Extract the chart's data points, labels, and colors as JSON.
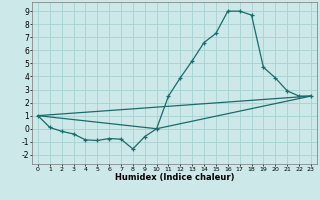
{
  "xlabel": "Humidex (Indice chaleur)",
  "bg_color": "#cce8e8",
  "grid_color": "#aad4d4",
  "line_color": "#1a6b6b",
  "xlim": [
    -0.5,
    23.5
  ],
  "ylim": [
    -2.7,
    9.7
  ],
  "xticks": [
    0,
    1,
    2,
    3,
    4,
    5,
    6,
    7,
    8,
    9,
    10,
    11,
    12,
    13,
    14,
    15,
    16,
    17,
    18,
    19,
    20,
    21,
    22,
    23
  ],
  "yticks": [
    -2,
    -1,
    0,
    1,
    2,
    3,
    4,
    5,
    6,
    7,
    8,
    9
  ],
  "line1_x": [
    0,
    1,
    2,
    3,
    4,
    5,
    6,
    7,
    8,
    9,
    10,
    11,
    12,
    13,
    14,
    15,
    16,
    17,
    18,
    19,
    20,
    21,
    22,
    23
  ],
  "line1_y": [
    1.0,
    0.1,
    -0.2,
    -0.4,
    -0.85,
    -0.9,
    -0.75,
    -0.8,
    -1.55,
    -0.6,
    0.0,
    2.5,
    3.9,
    5.2,
    6.6,
    7.3,
    9.0,
    9.0,
    8.7,
    4.7,
    3.9,
    2.9,
    2.5,
    2.5
  ],
  "line2_x": [
    0,
    23
  ],
  "line2_y": [
    1.0,
    2.5
  ],
  "line3_x": [
    0,
    10,
    23
  ],
  "line3_y": [
    1.0,
    0.0,
    2.5
  ]
}
